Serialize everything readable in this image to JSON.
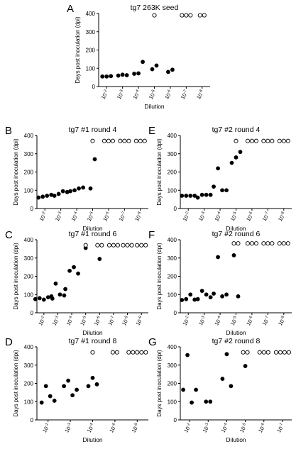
{
  "chart_data": [
    {
      "panel": "A",
      "type": "scatter",
      "title": "tg7 263K seed",
      "xlabel": "Dilution",
      "ylabel": "Days post inoculation (dpi)",
      "ylim": [
        0,
        400
      ],
      "yticks": [
        "0",
        "100",
        "200",
        "300",
        "400"
      ],
      "categories": [
        [
          "10",
          "-2"
        ],
        [
          "10",
          "-3"
        ],
        [
          "10",
          "-4"
        ],
        [
          "10",
          "-5"
        ],
        [
          "10",
          "-6"
        ],
        [
          "10",
          "-7"
        ],
        [
          "10",
          "-8"
        ]
      ],
      "filled": [
        [
          0,
          55
        ],
        [
          0,
          55
        ],
        [
          0,
          57
        ],
        [
          1,
          60
        ],
        [
          1,
          65
        ],
        [
          1,
          62
        ],
        [
          2,
          70
        ],
        [
          2,
          72
        ],
        [
          2,
          135
        ],
        [
          3,
          95
        ],
        [
          3,
          115
        ],
        [
          4,
          80
        ],
        [
          4,
          92
        ]
      ],
      "open": [
        [
          3,
          390
        ],
        [
          5,
          390
        ],
        [
          5,
          390
        ],
        [
          5,
          390
        ],
        [
          6,
          390
        ],
        [
          6,
          390
        ]
      ]
    },
    {
      "panel": "B",
      "type": "scatter",
      "title": "tg7 #1 round 4",
      "xlabel": "Dilution",
      "ylabel": "Days post inoculation (dpi)",
      "ylim": [
        0,
        400
      ],
      "yticks": [
        "0",
        "100",
        "200",
        "300",
        "400"
      ],
      "categories": [
        [
          "10",
          "-2"
        ],
        [
          "10",
          "-3"
        ],
        [
          "10",
          "-4"
        ],
        [
          "10",
          "-5"
        ],
        [
          "10",
          "-6"
        ],
        [
          "10",
          "-7"
        ],
        [
          "10",
          "-8"
        ]
      ],
      "filled": [
        [
          0,
          60
        ],
        [
          0,
          65
        ],
        [
          0,
          70
        ],
        [
          0,
          75
        ],
        [
          1,
          70
        ],
        [
          1,
          80
        ],
        [
          1,
          95
        ],
        [
          1,
          90
        ],
        [
          2,
          95
        ],
        [
          2,
          100
        ],
        [
          2,
          110
        ],
        [
          2,
          115
        ],
        [
          3,
          110
        ],
        [
          3,
          270
        ]
      ],
      "open": [
        [
          3,
          370
        ],
        [
          4,
          370
        ],
        [
          4,
          370
        ],
        [
          4,
          370
        ],
        [
          5,
          370
        ],
        [
          5,
          370
        ],
        [
          5,
          370
        ],
        [
          6,
          370
        ],
        [
          6,
          370
        ],
        [
          6,
          370
        ]
      ]
    },
    {
      "panel": "C",
      "type": "scatter",
      "title": "tg7 #1 round 6",
      "xlabel": "Dilution",
      "ylabel": "Days post inoculation (dpi)",
      "ylim": [
        0,
        400
      ],
      "yticks": [
        "0",
        "100",
        "200",
        "300",
        "400"
      ],
      "categories": [
        [
          "10",
          "-2"
        ],
        [
          "10",
          "-3"
        ],
        [
          "10",
          "-4"
        ],
        [
          "10",
          "-5"
        ],
        [
          "10",
          "-6"
        ],
        [
          "10",
          "-7"
        ],
        [
          "10",
          "-8"
        ],
        [
          "10",
          "-9"
        ]
      ],
      "filled": [
        [
          0,
          75
        ],
        [
          0,
          80
        ],
        [
          0,
          72
        ],
        [
          0,
          85
        ],
        [
          0,
          78
        ],
        [
          1,
          90
        ],
        [
          1,
          160
        ],
        [
          1,
          100
        ],
        [
          1,
          95
        ],
        [
          2,
          130
        ],
        [
          2,
          230
        ],
        [
          2,
          250
        ],
        [
          2,
          215
        ],
        [
          3,
          355
        ],
        [
          4,
          295
        ]
      ],
      "open": [
        [
          3,
          370
        ],
        [
          4,
          370
        ],
        [
          4,
          370
        ],
        [
          5,
          370
        ],
        [
          5,
          370
        ],
        [
          5,
          370
        ],
        [
          6,
          370
        ],
        [
          6,
          370
        ],
        [
          6,
          370
        ],
        [
          7,
          370
        ],
        [
          7,
          370
        ],
        [
          7,
          370
        ]
      ]
    },
    {
      "panel": "D",
      "type": "scatter",
      "title": "tg7 #1 round 8",
      "xlabel": "Dilution",
      "ylabel": "Days post inoculation (dpi)",
      "ylim": [
        0,
        400
      ],
      "yticks": [
        "0",
        "100",
        "200",
        "300",
        "400"
      ],
      "categories": [
        [
          "10",
          "-2"
        ],
        [
          "10",
          "-3"
        ],
        [
          "10",
          "-4"
        ],
        [
          "10",
          "-6"
        ],
        [
          "10",
          "-8"
        ]
      ],
      "filled": [
        [
          0,
          95
        ],
        [
          0,
          185
        ],
        [
          0,
          130
        ],
        [
          0,
          105
        ],
        [
          1,
          185
        ],
        [
          1,
          215
        ],
        [
          1,
          135
        ],
        [
          1,
          165
        ],
        [
          2,
          185
        ],
        [
          2,
          230
        ],
        [
          2,
          195
        ]
      ],
      "open": [
        [
          2,
          370
        ],
        [
          3,
          370
        ],
        [
          3,
          370
        ],
        [
          4,
          370
        ],
        [
          4,
          370
        ],
        [
          4,
          370
        ],
        [
          4,
          370
        ],
        [
          4,
          370
        ]
      ]
    },
    {
      "panel": "E",
      "type": "scatter",
      "title": "tg7 #2 round 4",
      "xlabel": "Dilution",
      "ylabel": "Days post inoculation (dpi)",
      "ylim": [
        0,
        400
      ],
      "yticks": [
        "0",
        "100",
        "200",
        "300",
        "400"
      ],
      "categories": [
        [
          "10",
          "-2"
        ],
        [
          "10",
          "-3"
        ],
        [
          "10",
          "-4"
        ],
        [
          "10",
          "-5"
        ],
        [
          "10",
          "-6"
        ],
        [
          "10",
          "-7"
        ],
        [
          "10",
          "-8"
        ]
      ],
      "filled": [
        [
          0,
          70
        ],
        [
          0,
          70
        ],
        [
          0,
          70
        ],
        [
          0,
          70
        ],
        [
          1,
          60
        ],
        [
          1,
          75
        ],
        [
          1,
          75
        ],
        [
          1,
          75
        ],
        [
          2,
          120
        ],
        [
          2,
          220
        ],
        [
          2,
          100
        ],
        [
          2,
          100
        ],
        [
          3,
          250
        ],
        [
          3,
          280
        ],
        [
          3,
          310
        ]
      ],
      "open": [
        [
          3,
          370
        ],
        [
          4,
          370
        ],
        [
          4,
          370
        ],
        [
          4,
          370
        ],
        [
          5,
          370
        ],
        [
          5,
          370
        ],
        [
          5,
          370
        ],
        [
          6,
          370
        ],
        [
          6,
          370
        ],
        [
          6,
          370
        ]
      ]
    },
    {
      "panel": "F",
      "type": "scatter",
      "title": "tg7 #2 round 6",
      "xlabel": "Dilution",
      "ylabel": "Days post inoculation (dpi)",
      "ylim": [
        0,
        400
      ],
      "yticks": [
        "0",
        "100",
        "200",
        "300",
        "400"
      ],
      "categories": [
        [
          "10",
          "-2"
        ],
        [
          "10",
          "-3"
        ],
        [
          "10",
          "-4"
        ],
        [
          "10",
          "-5"
        ],
        [
          "10",
          "-6"
        ],
        [
          "10",
          "-7"
        ],
        [
          "10",
          "-8"
        ]
      ],
      "filled": [
        [
          0,
          70
        ],
        [
          0,
          75
        ],
        [
          0,
          100
        ],
        [
          0,
          72
        ],
        [
          1,
          75
        ],
        [
          1,
          120
        ],
        [
          1,
          100
        ],
        [
          1,
          85
        ],
        [
          2,
          105
        ],
        [
          2,
          305
        ],
        [
          2,
          90
        ],
        [
          2,
          100
        ],
        [
          3,
          315
        ],
        [
          3,
          90
        ]
      ],
      "open": [
        [
          3,
          380
        ],
        [
          3,
          380
        ],
        [
          4,
          380
        ],
        [
          4,
          380
        ],
        [
          4,
          380
        ],
        [
          5,
          380
        ],
        [
          5,
          380
        ],
        [
          5,
          380
        ],
        [
          6,
          380
        ],
        [
          6,
          380
        ],
        [
          6,
          380
        ]
      ]
    },
    {
      "panel": "G",
      "type": "scatter",
      "title": "tg7 #2 round 8",
      "xlabel": "Dilution",
      "ylabel": "Days post inoculation (dpi)",
      "ylim": [
        0,
        400
      ],
      "yticks": [
        "0",
        "100",
        "200",
        "300",
        "400"
      ],
      "categories": [
        [
          "10",
          "-2"
        ],
        [
          "10",
          "-3"
        ],
        [
          "10",
          "-4"
        ],
        [
          "10",
          "-5"
        ],
        [
          "10",
          "-6"
        ],
        [
          "10",
          "-7"
        ]
      ],
      "filled": [
        [
          0,
          165
        ],
        [
          0,
          355
        ],
        [
          0,
          95
        ],
        [
          0,
          165
        ],
        [
          1,
          100
        ],
        [
          1,
          100
        ],
        [
          2,
          225
        ],
        [
          2,
          360
        ],
        [
          2,
          185
        ],
        [
          3,
          295
        ]
      ],
      "open": [
        [
          3,
          370
        ],
        [
          3,
          370
        ],
        [
          4,
          370
        ],
        [
          4,
          370
        ],
        [
          4,
          370
        ],
        [
          5,
          370
        ],
        [
          5,
          370
        ],
        [
          5,
          370
        ],
        [
          5,
          370
        ]
      ]
    }
  ]
}
